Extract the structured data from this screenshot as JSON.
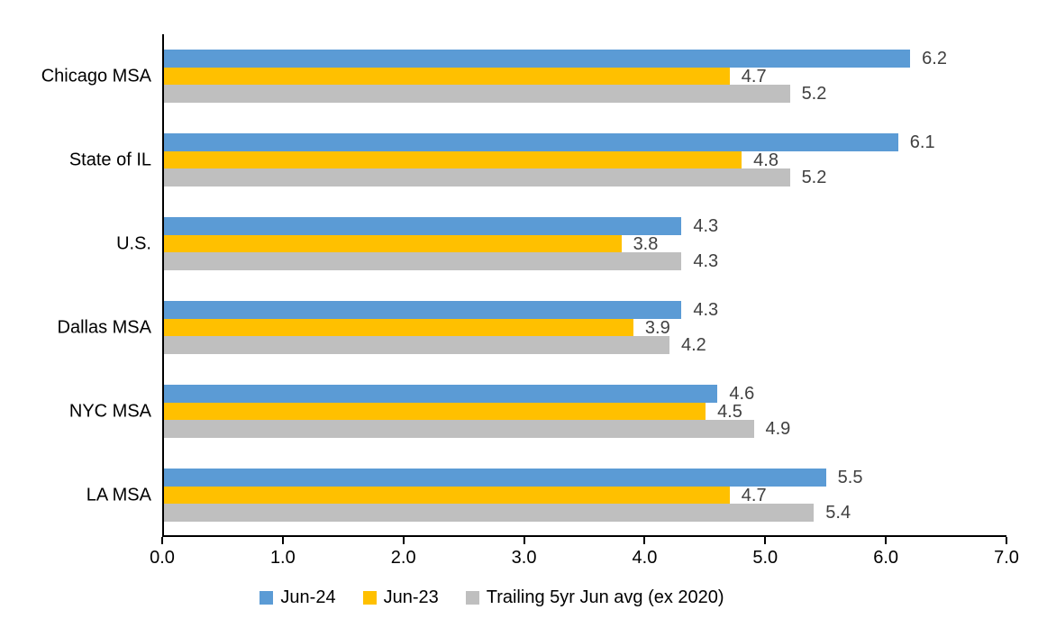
{
  "chart_data": {
    "type": "bar",
    "orientation": "horizontal",
    "title": "",
    "categories": [
      "Chicago MSA",
      "State of IL",
      "U.S.",
      "Dallas MSA",
      "NYC MSA",
      "LA MSA"
    ],
    "series": [
      {
        "name": "Jun-24",
        "color": "#5B9BD5",
        "values": [
          6.2,
          6.1,
          4.3,
          4.3,
          4.6,
          5.5
        ]
      },
      {
        "name": "Jun-23",
        "color": "#FFC000",
        "values": [
          4.7,
          4.8,
          3.8,
          3.9,
          4.5,
          4.7
        ]
      },
      {
        "name": "Trailing 5yr Jun avg (ex 2020)",
        "color": "#BFBFBF",
        "values": [
          5.2,
          5.2,
          4.3,
          4.2,
          4.9,
          5.4
        ]
      }
    ],
    "xlim": [
      0,
      7
    ],
    "xticks": [
      0,
      1,
      2,
      3,
      4,
      5,
      6,
      7
    ],
    "xtick_labels": [
      "0.0",
      "1.0",
      "2.0",
      "3.0",
      "4.0",
      "5.0",
      "6.0",
      "7.0"
    ],
    "value_labels_shown": true,
    "value_label_decimals": 1,
    "value_label_color": "#404040",
    "axis_color": "#000000",
    "text_color": "#000000",
    "grid": false,
    "legend_position": "bottom"
  }
}
